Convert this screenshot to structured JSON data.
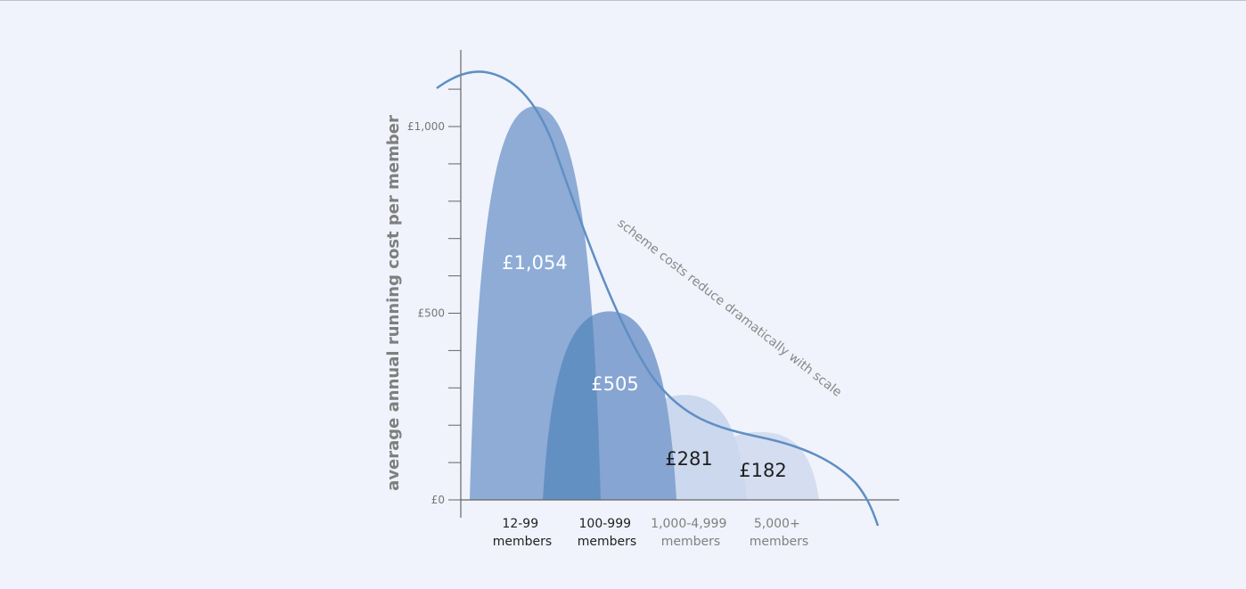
{
  "chart_data": {
    "type": "area",
    "title": "",
    "ylabel": "average annual running cost per member",
    "xlabel": "",
    "ylim": [
      0,
      1100
    ],
    "yticks": [
      {
        "value": 0,
        "label": "£0"
      },
      {
        "value": 500,
        "label": "£500"
      },
      {
        "value": 1000,
        "label": "£1,000"
      }
    ],
    "minor_tick_step": 100,
    "categories": [
      {
        "line1": "12-99",
        "line2": "members",
        "text_color": "#222222"
      },
      {
        "line1": "100-999",
        "line2": "members",
        "text_color": "#222222"
      },
      {
        "line1": "1,000-4,999",
        "line2": "members",
        "text_color": "#808080"
      },
      {
        "line1": "5,000+",
        "line2": "members",
        "text_color": "#808080"
      }
    ],
    "series": [
      {
        "value": 1054,
        "label": "£1,054",
        "color": "#8eacd6",
        "label_color": "#ffffff"
      },
      {
        "value": 505,
        "label": "£505",
        "color": "#86a5d2",
        "label_color": "#ffffff"
      },
      {
        "value": 281,
        "label": "£281",
        "color": "#ccd8ee",
        "label_color": "#1f1f1f"
      },
      {
        "value": 182,
        "label": "£182",
        "color": "#d4def0",
        "label_color": "#1f1f1f"
      }
    ],
    "overlap_color": "#6390c2",
    "trend_line": {
      "color": "#5f8fc4",
      "annotation": "scheme costs reduce dramatically with scale"
    },
    "grid": false,
    "legend": "none"
  }
}
